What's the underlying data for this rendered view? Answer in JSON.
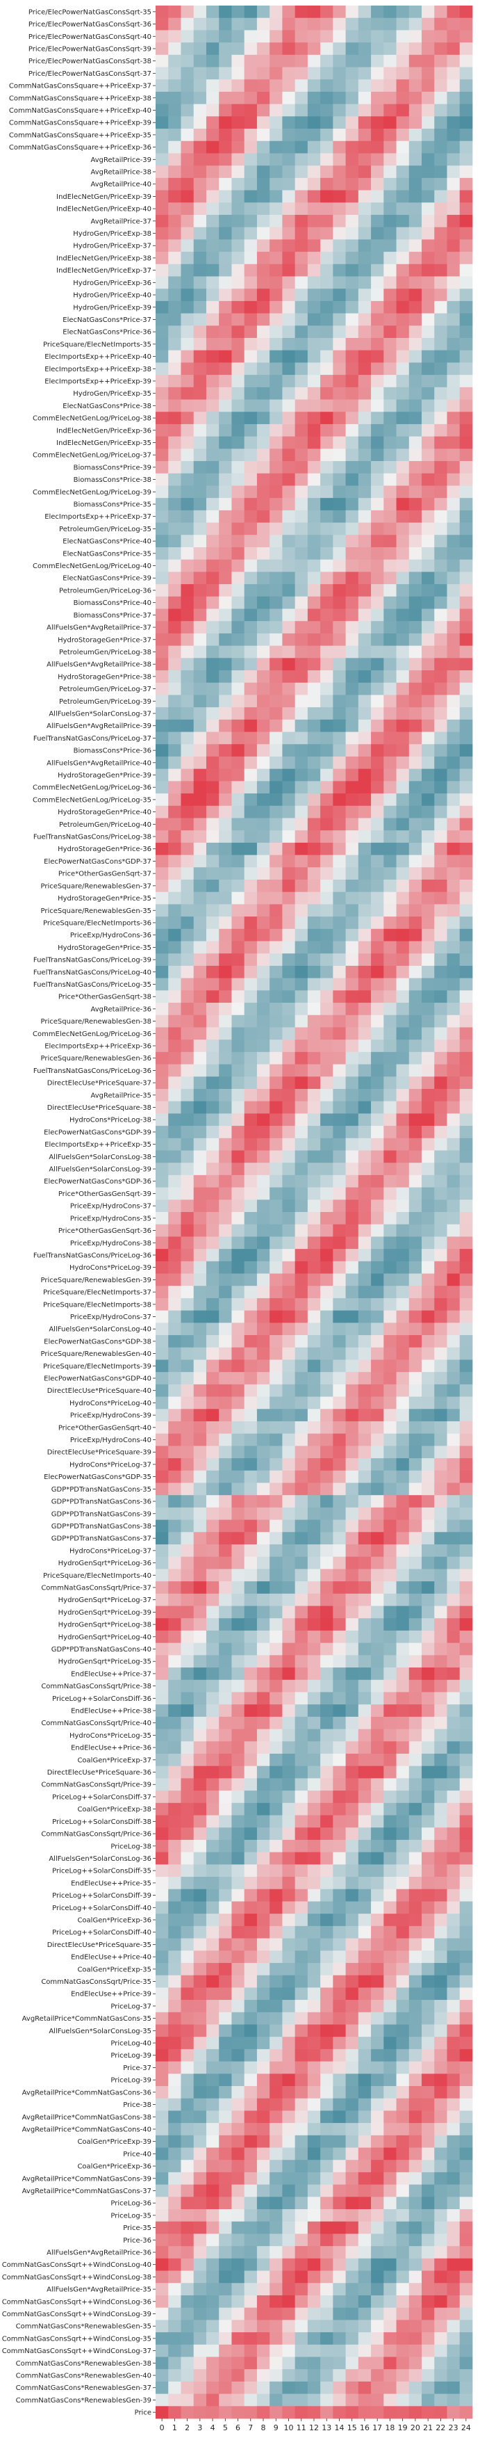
{
  "chart_data": {
    "type": "heatmap",
    "title": "",
    "xlabel": "",
    "ylabel": "",
    "x_labels": [
      "0",
      "1",
      "2",
      "3",
      "4",
      "5",
      "6",
      "7",
      "8",
      "9",
      "10",
      "11",
      "12",
      "13",
      "14",
      "15",
      "16",
      "17",
      "18",
      "19",
      "20",
      "21",
      "22",
      "23",
      "24"
    ],
    "y_labels": [
      "Price/ElecPowerNatGasConsSqrt-35",
      "Price/ElecPowerNatGasConsSqrt-36",
      "Price/ElecPowerNatGasConsSqrt-40",
      "Price/ElecPowerNatGasConsSqrt-39",
      "Price/ElecPowerNatGasConsSqrt-38",
      "Price/ElecPowerNatGasConsSqrt-37",
      "CommNatGasConsSquare++PriceExp-37",
      "CommNatGasConsSquare++PriceExp-38",
      "CommNatGasConsSquare++PriceExp-40",
      "CommNatGasConsSquare++PriceExp-39",
      "CommNatGasConsSquare++PriceExp-35",
      "CommNatGasConsSquare++PriceExp-36",
      "AvgRetailPrice-39",
      "AvgRetailPrice-38",
      "AvgRetailPrice-40",
      "IndElecNetGen/PriceExp-39",
      "IndElecNetGen/PriceExp-40",
      "AvgRetailPrice-37",
      "HydroGen/PriceExp-38",
      "HydroGen/PriceExp-37",
      "IndElecNetGen/PriceExp-38",
      "IndElecNetGen/PriceExp-37",
      "HydroGen/PriceExp-36",
      "HydroGen/PriceExp-40",
      "HydroGen/PriceExp-39",
      "ElecNatGasCons*Price-37",
      "ElecNatGasCons*Price-36",
      "PriceSquare/ElecNetImports-35",
      "ElecImportsExp++PriceExp-40",
      "ElecImportsExp++PriceExp-38",
      "ElecImportsExp++PriceExp-39",
      "HydroGen/PriceExp-35",
      "ElecNatGasCons*Price-38",
      "CommElecNetGenLog/PriceLog-38",
      "IndElecNetGen/PriceExp-36",
      "IndElecNetGen/PriceExp-35",
      "CommElecNetGenLog/PriceLog-37",
      "BiomassCons*Price-39",
      "BiomassCons*Price-38",
      "CommElecNetGenLog/PriceLog-39",
      "BiomassCons*Price-35",
      "ElecImportsExp++PriceExp-37",
      "PetroleumGen/PriceLog-35",
      "ElecNatGasCons*Price-40",
      "ElecNatGasCons*Price-35",
      "CommElecNetGenLog/PriceLog-40",
      "ElecNatGasCons*Price-39",
      "PetroleumGen/PriceLog-36",
      "BiomassCons*Price-40",
      "BiomassCons*Price-37",
      "AllFuelsGen*AvgRetailPrice-37",
      "HydroStorageGen*Price-37",
      "PetroleumGen/PriceLog-38",
      "AllFuelsGen*AvgRetailPrice-38",
      "HydroStorageGen*Price-38",
      "PetroleumGen/PriceLog-37",
      "PetroleumGen/PriceLog-39",
      "AllFuelsGen*SolarConsLog-37",
      "AllFuelsGen*AvgRetailPrice-39",
      "FuelTransNatGasCons/PriceLog-37",
      "BiomassCons*Price-36",
      "AllFuelsGen*AvgRetailPrice-40",
      "HydroStorageGen*Price-39",
      "CommElecNetGenLog/PriceLog-36",
      "CommElecNetGenLog/PriceLog-35",
      "HydroStorageGen*Price-40",
      "PetroleumGen/PriceLog-40",
      "FuelTransNatGasCons/PriceLog-38",
      "HydroStorageGen*Price-36",
      "ElecPowerNatGasCons*GDP-37",
      "Price*OtherGasGenSqrt-37",
      "PriceSquare/RenewablesGen-37",
      "HydroStorageGen*Price-35",
      "PriceSquare/RenewablesGen-35",
      "PriceSquare/ElecNetImports-36",
      "PriceExp/HydroCons-36",
      "HydroStorageGen*Price-35",
      "FuelTransNatGasCons/PriceLog-39",
      "FuelTransNatGasCons/PriceLog-40",
      "FuelTransNatGasCons/PriceLog-35",
      "Price*OtherGasGenSqrt-38",
      "AvgRetailPrice-36",
      "PriceSquare/RenewablesGen-38",
      "CommElecNetGenLog/PriceLog-36",
      "ElecImportsExp++PriceExp-36",
      "PriceSquare/RenewablesGen-36",
      "FuelTransNatGasCons/PriceLog-36",
      "DirectElecUse*PriceSquare-37",
      "AvgRetailPrice-35",
      "DirectElecUse*PriceSquare-38",
      "HydroCons*PriceLog-38",
      "ElecPowerNatGasCons*GDP-39",
      "ElecImportsExp++PriceExp-35",
      "AllFuelsGen*SolarConsLog-38",
      "AllFuelsGen*SolarConsLog-39",
      "ElecPowerNatGasCons*GDP-36",
      "Price*OtherGasGenSqrt-39",
      "PriceExp/HydroCons-37",
      "PriceExp/HydroCons-35",
      "Price*OtherGasGenSqrt-36",
      "PriceExp/HydroCons-38",
      "FuelTransNatGasCons/PriceLog-36",
      "HydroCons*PriceLog-39",
      "PriceSquare/RenewablesGen-39",
      "PriceSquare/ElecNetImports-37",
      "PriceSquare/ElecNetImports-38",
      "PriceExp/HydroCons-37",
      "AllFuelsGen*SolarConsLog-40",
      "ElecPowerNatGasCons*GDP-38",
      "PriceSquare/RenewablesGen-40",
      "PriceSquare/ElecNetImports-39",
      "ElecPowerNatGasCons*GDP-40",
      "DirectElecUse*PriceSquare-40",
      "HydroCons*PriceLog-40",
      "PriceExp/HydroCons-39",
      "Price*OtherGasGenSqrt-40",
      "PriceExp/HydroCons-40",
      "DirectElecUse*PriceSquare-39",
      "HydroCons*PriceLog-37",
      "ElecPowerNatGasCons*GDP-35",
      "GDP*PDTransNatGasCons-35",
      "GDP*PDTransNatGasCons-36",
      "GDP*PDTransNatGasCons-39",
      "GDP*PDTransNatGasCons-38",
      "GDP*PDTransNatGasCons-37",
      "HydroCons*PriceLog-37",
      "HydroGenSqrt*PriceLog-36",
      "PriceSquare/ElecNetImports-40",
      "CommNatGasConsSqrt/Price-37",
      "HydroGenSqrt*PriceLog-37",
      "HydroGenSqrt*PriceLog-39",
      "HydroGenSqrt*PriceLog-38",
      "HydroGenSqrt*PriceLog-40",
      "GDP*PDTransNatGasCons-40",
      "HydroGenSqrt*PriceLog-35",
      "EndElecUse++Price-37",
      "CommNatGasConsSqrt/Price-38",
      "PriceLog++SolarConsDiff-36",
      "EndElecUse++Price-38",
      "CommNatGasConsSqrt/Price-40",
      "HydroCons*PriceLog-35",
      "EndElecUse++Price-36",
      "CoalGen*PriceExp-37",
      "DirectElecUse*PriceSquare-36",
      "CommNatGasConsSqrt/Price-39",
      "PriceLog++SolarConsDiff-37",
      "CoalGen*PriceExp-38",
      "PriceLog++SolarConsDiff-38",
      "CommNatGasConsSqrt/Price-36",
      "PriceLog-38",
      "AllFuelsGen*SolarConsLog-36",
      "PriceLog++SolarConsDiff-35",
      "EndElecUse++Price-35",
      "PriceLog++SolarConsDiff-39",
      "PriceLog++SolarConsDiff-40",
      "CoalGen*PriceExp-36",
      "PriceLog++SolarConsDiff-40",
      "DirectElecUse*PriceSquare-35",
      "EndElecUse++Price-40",
      "CoalGen*PriceExp-35",
      "CommNatGasConsSqrt/Price-35",
      "EndElecUse++Price-39",
      "PriceLog-37",
      "AvgRetailPrice*CommNatGasCons-35",
      "AllFuelsGen*SolarConsLog-35",
      "PriceLog-40",
      "PriceLog-39",
      "Price-37",
      "PriceLog-39",
      "AvgRetailPrice*CommNatGasCons-36",
      "Price-38",
      "AvgRetailPrice*CommNatGasCons-38",
      "AvgRetailPrice*CommNatGasCons-40",
      "CoalGen*PriceExp-39",
      "Price-40",
      "CoalGen*PriceExp-36",
      "AvgRetailPrice*CommNatGasCons-39",
      "AvgRetailPrice*CommNatGasCons-37",
      "PriceLog-36",
      "PriceLog-35",
      "Price-35",
      "Price-36",
      "AllFuelsGen*AvgRetailPrice-36",
      "CommNatGasConsSqrt++WindConsLog-40",
      "CommNatGasConsSqrt++WindConsLog-38",
      "AllFuelsGen*AvgRetailPrice-35",
      "CommNatGasConsSqrt++WindConsLog-36",
      "CommNatGasConsSqrt++WindConsLog-39",
      "CommNatGasCons*RenewablesGen-35",
      "CommNatGasConsSqrt++WindConsLog-35",
      "CommNatGasConsSqrt++WindConsLog-37",
      "CommNatGasCons*RenewablesGen-38",
      "CommNatGasCons*RenewablesGen-40",
      "CommNatGasCons*RenewablesGen-37",
      "CommNatGasCons*RenewablesGen-39",
      "Price"
    ],
    "colormap": {
      "low": "#4d8fa1",
      "mid": "#f2f2f2",
      "high": "#e2404d"
    },
    "value_range": [
      -1,
      1
    ],
    "grid": false,
    "legend": "none",
    "note_values": "cell values estimated from colour; generated procedurally below from the observed banding pattern"
  }
}
